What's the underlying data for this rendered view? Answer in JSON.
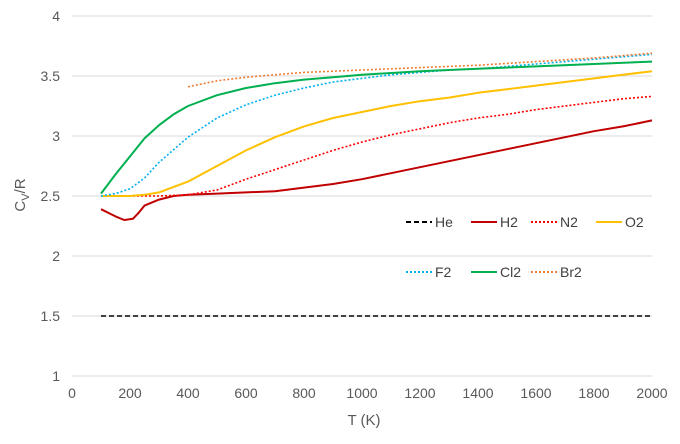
{
  "chart_data": {
    "type": "line",
    "title": "",
    "xlabel": "T (K)",
    "ylabel_main": "C",
    "ylabel_sub": "V",
    "ylabel_tail": "/R",
    "xlim": [
      0,
      2000
    ],
    "ylim": [
      1,
      4
    ],
    "x_ticks": [
      0,
      200,
      400,
      600,
      800,
      1000,
      1200,
      1400,
      1600,
      1800,
      2000
    ],
    "y_ticks": [
      1,
      1.5,
      2,
      2.5,
      3,
      3.5,
      4
    ],
    "x_tick_labels": [
      "0",
      "200",
      "400",
      "600",
      "800",
      "1000",
      "1200",
      "1400",
      "1600",
      "1800",
      "2000"
    ],
    "y_tick_labels": [
      "1",
      "1.5",
      "2",
      "2.5",
      "3",
      "3.5",
      "4"
    ],
    "grid": "horizontal",
    "legend_position": "inside-right",
    "series": [
      {
        "name": "He",
        "color": "#000000",
        "dash": "dashed",
        "points": [
          [
            100,
            1.5
          ],
          [
            2000,
            1.5
          ]
        ]
      },
      {
        "name": "H2",
        "color": "#c00000",
        "dash": "solid",
        "points": [
          [
            100,
            2.39
          ],
          [
            150,
            2.33
          ],
          [
            180,
            2.3
          ],
          [
            210,
            2.31
          ],
          [
            230,
            2.36
          ],
          [
            250,
            2.42
          ],
          [
            300,
            2.47
          ],
          [
            350,
            2.5
          ],
          [
            400,
            2.51
          ],
          [
            500,
            2.52
          ],
          [
            600,
            2.53
          ],
          [
            700,
            2.54
          ],
          [
            800,
            2.57
          ],
          [
            900,
            2.6
          ],
          [
            1000,
            2.64
          ],
          [
            1100,
            2.69
          ],
          [
            1200,
            2.74
          ],
          [
            1300,
            2.79
          ],
          [
            1400,
            2.84
          ],
          [
            1500,
            2.89
          ],
          [
            1600,
            2.94
          ],
          [
            1700,
            2.99
          ],
          [
            1800,
            3.04
          ],
          [
            1900,
            3.08
          ],
          [
            2000,
            3.13
          ]
        ]
      },
      {
        "name": "N2",
        "color": "#ff0000",
        "dash": "dotted",
        "points": [
          [
            100,
            2.5
          ],
          [
            200,
            2.5
          ],
          [
            300,
            2.5
          ],
          [
            400,
            2.51
          ],
          [
            500,
            2.55
          ],
          [
            600,
            2.64
          ],
          [
            700,
            2.72
          ],
          [
            800,
            2.8
          ],
          [
            900,
            2.88
          ],
          [
            1000,
            2.95
          ],
          [
            1100,
            3.01
          ],
          [
            1200,
            3.06
          ],
          [
            1300,
            3.11
          ],
          [
            1400,
            3.15
          ],
          [
            1500,
            3.18
          ],
          [
            1600,
            3.22
          ],
          [
            1700,
            3.25
          ],
          [
            1800,
            3.28
          ],
          [
            1900,
            3.31
          ],
          [
            2000,
            3.33
          ]
        ]
      },
      {
        "name": "O2",
        "color": "#ffc000",
        "dash": "solid",
        "points": [
          [
            100,
            2.5
          ],
          [
            200,
            2.5
          ],
          [
            250,
            2.51
          ],
          [
            300,
            2.53
          ],
          [
            400,
            2.62
          ],
          [
            500,
            2.75
          ],
          [
            600,
            2.88
          ],
          [
            700,
            2.99
          ],
          [
            800,
            3.08
          ],
          [
            900,
            3.15
          ],
          [
            1000,
            3.2
          ],
          [
            1100,
            3.25
          ],
          [
            1200,
            3.29
          ],
          [
            1300,
            3.32
          ],
          [
            1400,
            3.36
          ],
          [
            1500,
            3.39
          ],
          [
            1600,
            3.42
          ],
          [
            1700,
            3.45
          ],
          [
            1800,
            3.48
          ],
          [
            1900,
            3.51
          ],
          [
            2000,
            3.54
          ]
        ]
      },
      {
        "name": "F2",
        "color": "#00b0f0",
        "dash": "dotted",
        "points": [
          [
            100,
            2.5
          ],
          [
            150,
            2.52
          ],
          [
            200,
            2.56
          ],
          [
            250,
            2.65
          ],
          [
            300,
            2.78
          ],
          [
            400,
            2.99
          ],
          [
            500,
            3.15
          ],
          [
            600,
            3.26
          ],
          [
            700,
            3.34
          ],
          [
            800,
            3.4
          ],
          [
            900,
            3.45
          ],
          [
            1000,
            3.48
          ],
          [
            1100,
            3.51
          ],
          [
            1200,
            3.53
          ],
          [
            1300,
            3.55
          ],
          [
            1400,
            3.56
          ],
          [
            1500,
            3.58
          ],
          [
            1600,
            3.6
          ],
          [
            1700,
            3.62
          ],
          [
            1800,
            3.64
          ],
          [
            1900,
            3.66
          ],
          [
            2000,
            3.68
          ]
        ]
      },
      {
        "name": "Cl2",
        "color": "#00b050",
        "dash": "solid",
        "points": [
          [
            100,
            2.52
          ],
          [
            150,
            2.68
          ],
          [
            200,
            2.83
          ],
          [
            250,
            2.98
          ],
          [
            300,
            3.09
          ],
          [
            350,
            3.18
          ],
          [
            400,
            3.25
          ],
          [
            500,
            3.34
          ],
          [
            600,
            3.4
          ],
          [
            700,
            3.44
          ],
          [
            800,
            3.47
          ],
          [
            900,
            3.49
          ],
          [
            1000,
            3.51
          ],
          [
            1200,
            3.54
          ],
          [
            1400,
            3.56
          ],
          [
            1600,
            3.58
          ],
          [
            1800,
            3.6
          ],
          [
            2000,
            3.62
          ]
        ]
      },
      {
        "name": "Br2",
        "color": "#ed7d31",
        "dash": "dotted",
        "points": [
          [
            400,
            3.41
          ],
          [
            500,
            3.46
          ],
          [
            600,
            3.49
          ],
          [
            700,
            3.51
          ],
          [
            800,
            3.53
          ],
          [
            900,
            3.54
          ],
          [
            1000,
            3.55
          ],
          [
            1200,
            3.57
          ],
          [
            1400,
            3.59
          ],
          [
            1600,
            3.62
          ],
          [
            1800,
            3.65
          ],
          [
            2000,
            3.69
          ]
        ]
      }
    ]
  }
}
